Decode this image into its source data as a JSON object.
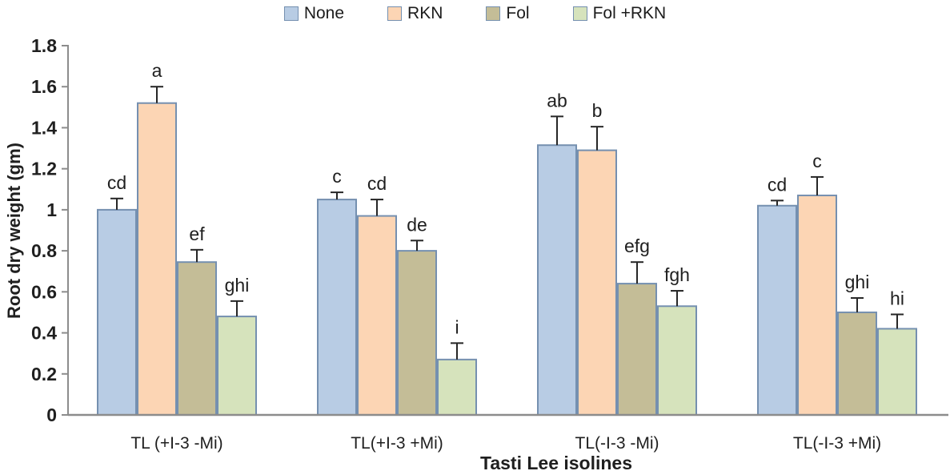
{
  "chart_data": {
    "type": "bar",
    "title": "",
    "xlabel": "Tasti Lee isolines",
    "ylabel": "Root dry weight (gm)",
    "ylim": [
      0,
      1.8
    ],
    "ytick_labels": [
      "0",
      "0.2",
      "0.4",
      "0.6",
      "0.8",
      "1",
      "1.2",
      "1.4",
      "1.6",
      "1.8"
    ],
    "ytick_values": [
      0,
      0.2,
      0.4,
      0.6,
      0.8,
      1.0,
      1.2,
      1.4,
      1.6,
      1.8
    ],
    "grid": false,
    "legend_position": "top",
    "categories": [
      "TL (+I-3 -Mi)",
      "TL(+I-3 +Mi)",
      "TL(-I-3 -Mi)",
      "TL(-I-3 +Mi)"
    ],
    "series": [
      {
        "name": "None",
        "color": "#b8cce4",
        "values": [
          1.0,
          1.05,
          1.315,
          1.02
        ],
        "errors": [
          0.055,
          0.035,
          0.14,
          0.025
        ],
        "letters": [
          "cd",
          "c",
          "ab",
          "cd"
        ]
      },
      {
        "name": "RKN",
        "color": "#fcd5b4",
        "values": [
          1.52,
          0.97,
          1.29,
          1.07
        ],
        "errors": [
          0.08,
          0.08,
          0.115,
          0.09
        ],
        "letters": [
          "a",
          "cd",
          "b",
          "c"
        ]
      },
      {
        "name": "Fol",
        "color": "#c4bd97",
        "values": [
          0.745,
          0.8,
          0.64,
          0.5
        ],
        "errors": [
          0.06,
          0.05,
          0.105,
          0.07
        ],
        "letters": [
          "ef",
          "de",
          "efg",
          "ghi"
        ]
      },
      {
        "name": "Fol +RKN",
        "color": "#d6e3bc",
        "values": [
          0.48,
          0.27,
          0.53,
          0.42
        ],
        "errors": [
          0.075,
          0.08,
          0.075,
          0.07
        ],
        "letters": [
          "ghi",
          "i",
          "fgh",
          "hi"
        ]
      }
    ],
    "colors": {
      "bar_border": "#7590b0",
      "axis": "#8c8c8c",
      "text": "#1f1f1f",
      "error_bar": "#262626"
    }
  }
}
